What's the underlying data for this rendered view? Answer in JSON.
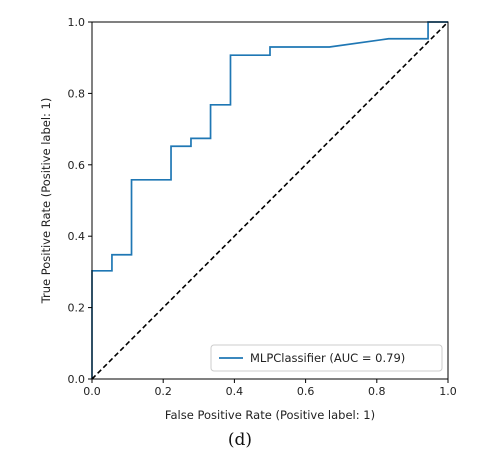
{
  "chart_data": {
    "type": "line",
    "xlabel": "False Positive Rate (Positive label: 1)",
    "ylabel": "True Positive Rate (Positive label: 1)",
    "xlim": [
      0,
      1
    ],
    "ylim": [
      0,
      1
    ],
    "x_ticks": [
      "0.0",
      "0.2",
      "0.4",
      "0.6",
      "0.8",
      "1.0"
    ],
    "y_ticks": [
      "0.0",
      "0.2",
      "0.4",
      "0.6",
      "0.8",
      "1.0"
    ],
    "grid": false,
    "legend_position": "lower-right",
    "series": [
      {
        "name": "MLPClassifier (AUC = 0.79)",
        "color": "#1f77b4",
        "style": "step",
        "x": [
          0.0,
          0.0,
          0.056,
          0.056,
          0.111,
          0.111,
          0.222,
          0.222,
          0.278,
          0.278,
          0.333,
          0.333,
          0.389,
          0.389,
          0.5,
          0.5,
          0.667,
          0.833,
          0.944,
          0.944,
          1.0
        ],
        "y": [
          0.0,
          0.303,
          0.303,
          0.348,
          0.348,
          0.558,
          0.558,
          0.652,
          0.652,
          0.674,
          0.674,
          0.768,
          0.768,
          0.907,
          0.907,
          0.93,
          0.93,
          0.953,
          0.953,
          1.0,
          1.0
        ]
      },
      {
        "name": "",
        "color": "#000000",
        "style": "dashed",
        "x": [
          0,
          1
        ],
        "y": [
          0,
          1
        ]
      }
    ]
  },
  "caption": "(d)"
}
